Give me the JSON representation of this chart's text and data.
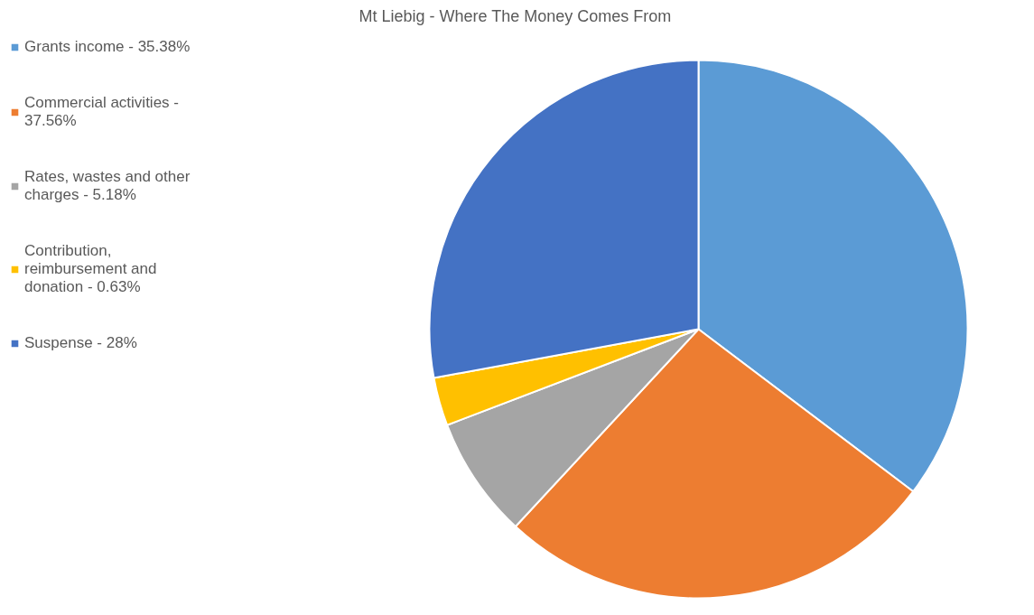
{
  "chart_data": {
    "type": "pie",
    "title": "Mt Liebig - Where The Money Comes From",
    "categories": [
      "Grants income - 35.38%",
      "Commercial activities - 37.56%",
      "Rates, wastes and other charges - 5.18%",
      "Contribution, reimbursement and donation - 0.63%",
      "Suspense - 28%"
    ],
    "values": [
      35.3,
      26.6,
      7.3,
      2.9,
      27.9
    ],
    "colors": [
      "#5b9bd5",
      "#ed7d31",
      "#a5a5a5",
      "#ffc000",
      "#4472c4"
    ],
    "legend": "left"
  }
}
